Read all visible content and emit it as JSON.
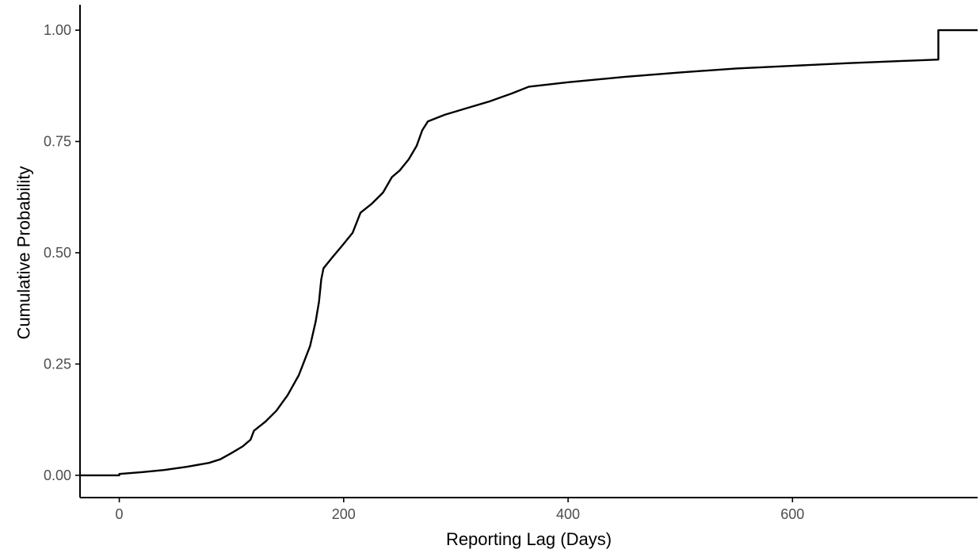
{
  "chart_data": {
    "type": "line",
    "step": true,
    "title": "",
    "xlabel": "Reporting Lag (Days)",
    "ylabel": "Cumulative Probability",
    "xlim": [
      -35,
      765
    ],
    "ylim": [
      -0.05,
      1.05
    ],
    "x_ticks": [
      0,
      200,
      400,
      600
    ],
    "x_tick_labels": [
      "0",
      "200",
      "400",
      "600"
    ],
    "y_ticks": [
      0,
      0.25,
      0.5,
      0.75,
      1.0
    ],
    "y_tick_labels": [
      "0.00",
      "0.25",
      "0.50",
      "0.75",
      "1.00"
    ],
    "grid": false,
    "legend": "none",
    "colors": {
      "line": "#000000",
      "axis": "#000000",
      "tick_label": "#4d4d4d",
      "background": "#ffffff"
    },
    "series": [
      {
        "x": [
          -35,
          0,
          0,
          20,
          40,
          60,
          80,
          90,
          100,
          110,
          117,
          120,
          130,
          140,
          150,
          160,
          170,
          175,
          178,
          180,
          182,
          190,
          200,
          208,
          215,
          225,
          235,
          243,
          250,
          258,
          265,
          270,
          275,
          290,
          310,
          330,
          350,
          365,
          400,
          450,
          500,
          550,
          600,
          650,
          700,
          730,
          730,
          765
        ],
        "y": [
          0.0,
          0.0,
          0.003,
          0.007,
          0.012,
          0.019,
          0.028,
          0.036,
          0.05,
          0.065,
          0.08,
          0.1,
          0.12,
          0.145,
          0.18,
          0.225,
          0.29,
          0.345,
          0.39,
          0.44,
          0.465,
          0.49,
          0.52,
          0.545,
          0.59,
          0.61,
          0.635,
          0.67,
          0.685,
          0.71,
          0.74,
          0.775,
          0.795,
          0.81,
          0.825,
          0.84,
          0.858,
          0.873,
          0.883,
          0.895,
          0.905,
          0.914,
          0.92,
          0.926,
          0.931,
          0.934,
          1.0,
          1.0
        ]
      }
    ]
  }
}
